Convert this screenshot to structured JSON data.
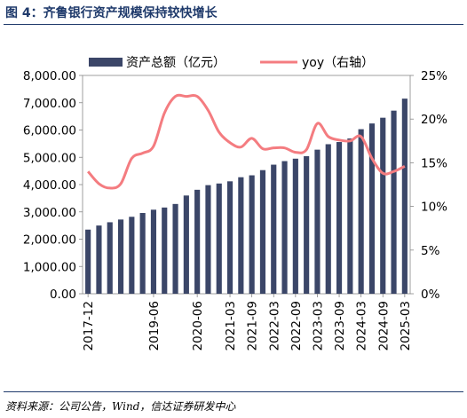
{
  "figure": {
    "title": "图 4：齐鲁银行资产规模保持较快增长",
    "source": "资料来源：公司公告，Wind，信达证券研发中心"
  },
  "chart_data": {
    "type": "bar",
    "title": "",
    "xlabel": "",
    "ylabel": "",
    "categories": [
      "2017-12",
      "2018-03",
      "2018-06",
      "2018-09",
      "2018-12",
      "2019-03",
      "2019-06",
      "2019-09",
      "2019-12",
      "2020-03",
      "2020-06",
      "2020-09",
      "2020-12",
      "2021-03",
      "2021-06",
      "2021-09",
      "2021-12",
      "2022-03",
      "2022-06",
      "2022-09",
      "2022-12",
      "2023-03",
      "2023-06",
      "2023-09",
      "2023-12",
      "2024-03",
      "2024-06",
      "2024-09",
      "2024-12",
      "2025-03"
    ],
    "x_tick_labels": [
      "2017-12",
      "2019-06",
      "2020-06",
      "2021-03",
      "2021-09",
      "2022-03",
      "2022-09",
      "2023-03",
      "2023-09",
      "2024-03",
      "2024-09",
      "2025-03"
    ],
    "y_left_ticks": [
      "0.00",
      "1,000.00",
      "2,000.00",
      "3,000.00",
      "4,000.00",
      "5,000.00",
      "6,000.00",
      "7,000.00",
      "8,000.00"
    ],
    "y_right_ticks": [
      "0%",
      "5%",
      "10%",
      "15%",
      "20%",
      "25%"
    ],
    "ylim_left": [
      0,
      8000
    ],
    "ylim_right": [
      0,
      25
    ],
    "legend_position": "top",
    "series": [
      {
        "name": "资产总额（亿元）",
        "type": "bar",
        "axis": "left",
        "color": "#3b4668",
        "values": [
          2350,
          2500,
          2620,
          2720,
          2820,
          2960,
          3080,
          3160,
          3290,
          3600,
          3810,
          3980,
          4040,
          4120,
          4270,
          4340,
          4530,
          4730,
          4860,
          4950,
          5040,
          5280,
          5480,
          5560,
          5690,
          6030,
          6240,
          6450,
          6710,
          7150
        ]
      },
      {
        "name": "yoy（右轴）",
        "type": "line",
        "axis": "right",
        "color": "#f47c80",
        "values": [
          14.0,
          12.6,
          12.1,
          12.6,
          15.5,
          16.1,
          16.9,
          20.7,
          22.6,
          22.6,
          22.6,
          21.0,
          18.5,
          17.3,
          16.8,
          17.8,
          16.6,
          16.7,
          16.7,
          16.2,
          16.5,
          19.5,
          18.0,
          17.6,
          17.5,
          18.0,
          15.5,
          13.8,
          14.0,
          14.6
        ]
      }
    ]
  }
}
